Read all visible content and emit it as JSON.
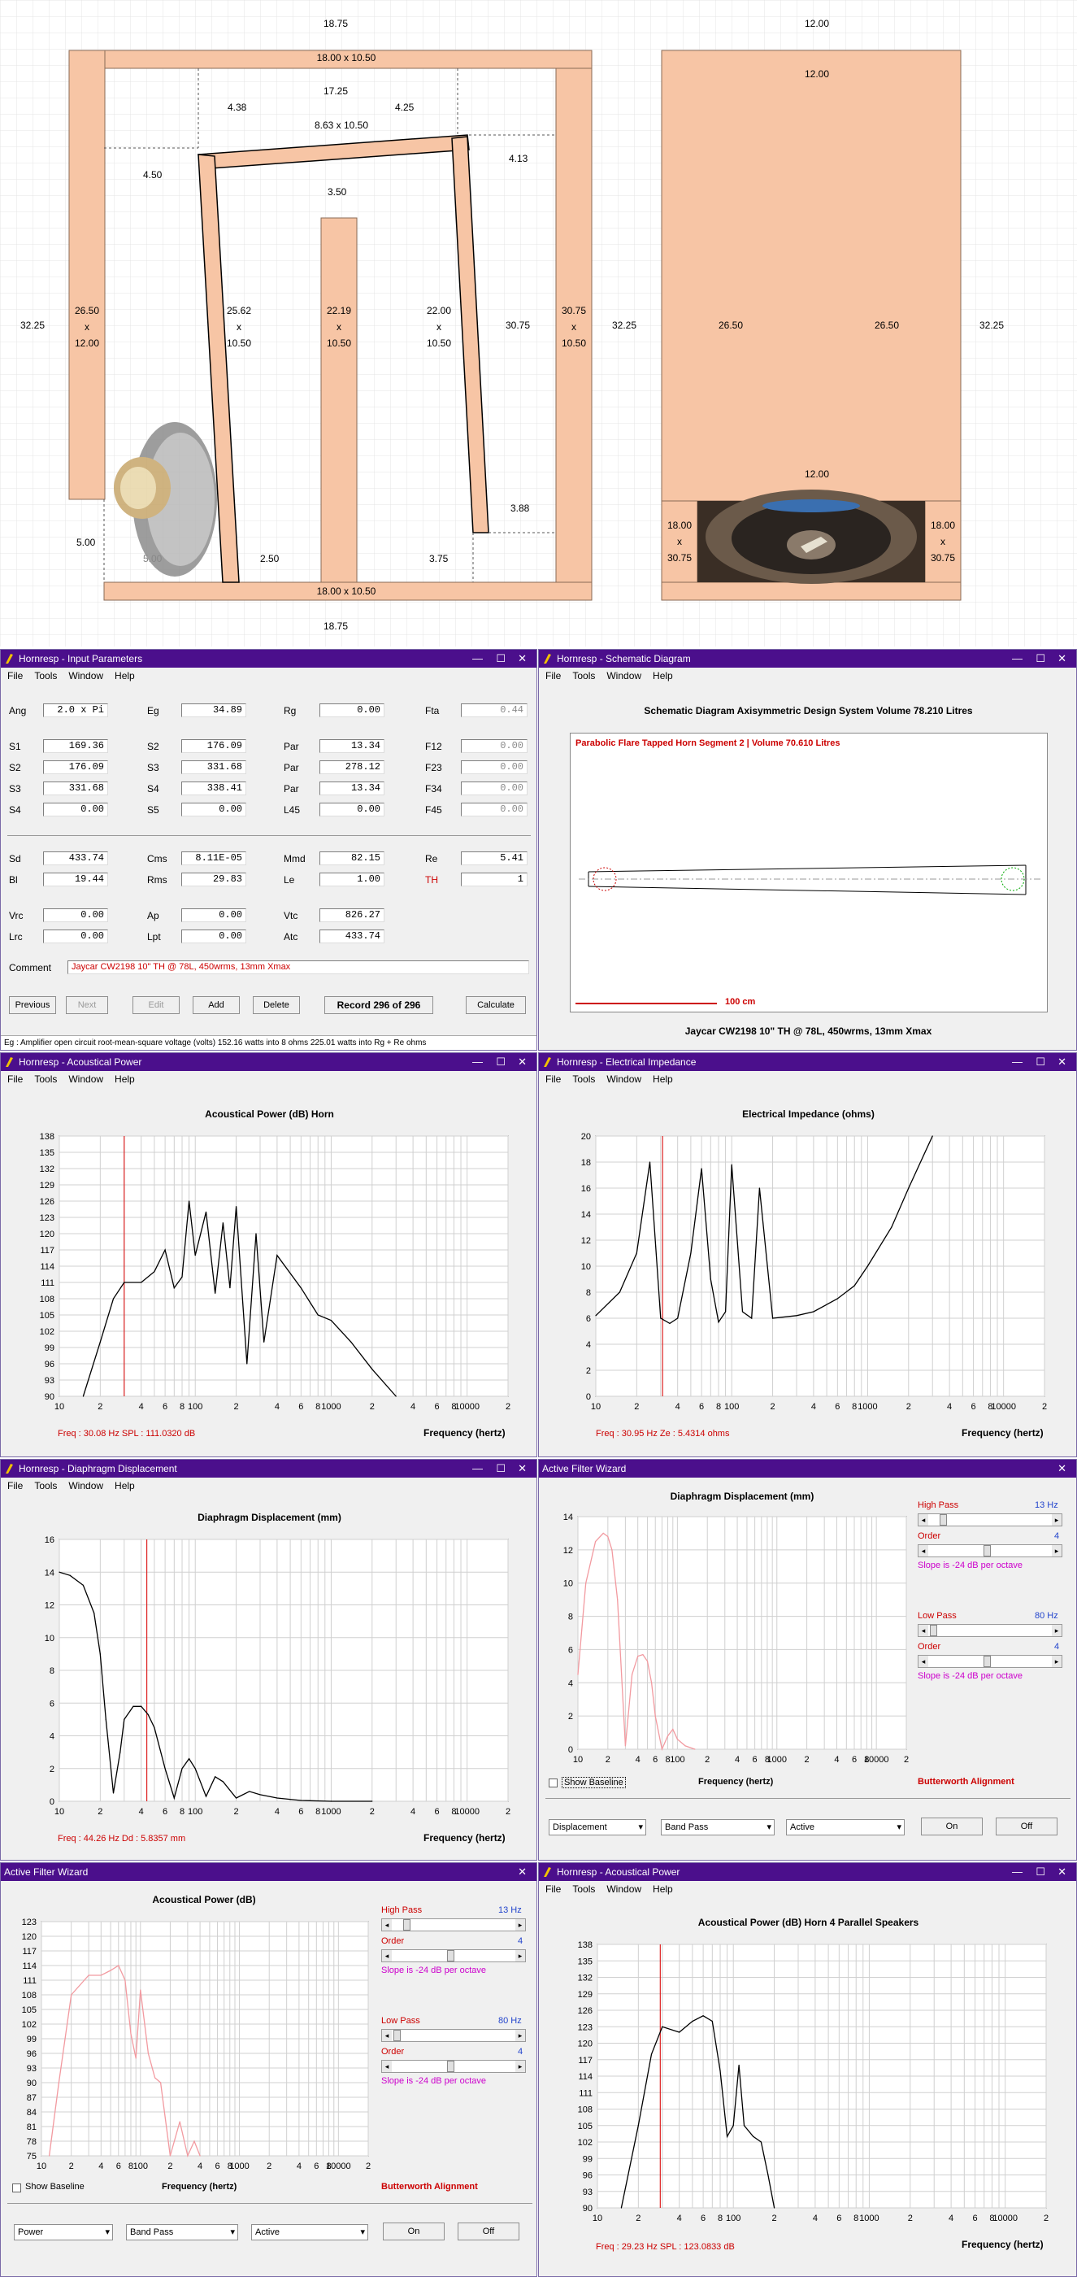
{
  "plan": {
    "side": {
      "top_width": "18.75",
      "bottom_width": "18.75",
      "top_panel": "18.00 x 10.50",
      "bottom_panel": "18.00 x 10.50",
      "upper_inner": "17.25",
      "left_gap": "4.38",
      "right_gap": "4.25",
      "baffle_top": "8.63 x 10.50",
      "left_step": "4.50",
      "right_step": "4.13",
      "center_gap": "3.50",
      "height_left": "32.25",
      "left_panel": [
        "26.50",
        "x",
        "12.00"
      ],
      "slant_left": [
        "25.62",
        "x",
        "10.50"
      ],
      "center_panel": [
        "22.19",
        "x",
        "10.50"
      ],
      "slant_right": [
        "22.00",
        "x",
        "10.50"
      ],
      "right_height": "30.75",
      "right_panel": [
        "30.75",
        "x",
        "10.50"
      ],
      "height_right": "32.25",
      "right_bottom": "3.88",
      "left_bottom": "5.00",
      "driver_gap": "5.00",
      "bottom_gap_left": "2.50",
      "bottom_gap_right": "3.75"
    },
    "front": {
      "top_width": "12.00",
      "inner_top": "12.00",
      "left_depth": "26.50",
      "right_depth": "26.50",
      "height_right": "32.25",
      "mid": "12.00",
      "foot_left": [
        "18.00",
        "x",
        "30.75"
      ],
      "foot_right": [
        "18.00",
        "x",
        "30.75"
      ]
    }
  },
  "input_params": {
    "title": "Hornresp - Input Parameters",
    "menu": [
      "File",
      "Tools",
      "Window",
      "Help"
    ],
    "row1": [
      {
        "l": "Ang",
        "v": "2.0 x Pi"
      },
      {
        "l": "Eg",
        "v": "34.89"
      },
      {
        "l": "Rg",
        "v": "0.00"
      },
      {
        "l": "Fta",
        "v": "0.44"
      }
    ],
    "grid": [
      [
        {
          "l": "S1",
          "v": "169.36"
        },
        {
          "l": "S2",
          "v": "176.09"
        },
        {
          "l": "Par",
          "v": "13.34"
        },
        {
          "l": "F12",
          "v": "0.00"
        }
      ],
      [
        {
          "l": "S2",
          "v": "176.09"
        },
        {
          "l": "S3",
          "v": "331.68"
        },
        {
          "l": "Par",
          "v": "278.12"
        },
        {
          "l": "F23",
          "v": "0.00"
        }
      ],
      [
        {
          "l": "S3",
          "v": "331.68"
        },
        {
          "l": "S4",
          "v": "338.41"
        },
        {
          "l": "Par",
          "v": "13.34"
        },
        {
          "l": "F34",
          "v": "0.00"
        }
      ],
      [
        {
          "l": "S4",
          "v": "0.00"
        },
        {
          "l": "S5",
          "v": "0.00"
        },
        {
          "l": "L45",
          "v": "0.00"
        },
        {
          "l": "F45",
          "v": "0.00"
        }
      ]
    ],
    "driver": [
      [
        {
          "l": "Sd",
          "v": "433.74"
        },
        {
          "l": "Cms",
          "v": "8.11E-05"
        },
        {
          "l": "Mmd",
          "v": "82.15"
        },
        {
          "l": "Re",
          "v": "5.41"
        }
      ],
      [
        {
          "l": "Bl",
          "v": "19.44"
        },
        {
          "l": "Rms",
          "v": "29.83"
        },
        {
          "l": "Le",
          "v": "1.00"
        },
        {
          "l": "TH",
          "v": "1"
        }
      ]
    ],
    "chamber": [
      [
        {
          "l": "Vrc",
          "v": "0.00"
        },
        {
          "l": "Ap",
          "v": "0.00"
        },
        {
          "l": "Vtc",
          "v": "826.27"
        }
      ],
      [
        {
          "l": "Lrc",
          "v": "0.00"
        },
        {
          "l": "Lpt",
          "v": "0.00"
        },
        {
          "l": "Atc",
          "v": "433.74"
        }
      ]
    ],
    "comment_label": "Comment",
    "comment": "Jaycar CW2198 10\" TH @ 78L, 450wrms, 13mm Xmax",
    "buttons": [
      "Previous",
      "Next",
      "Edit",
      "Add",
      "Delete"
    ],
    "record": "Record 296 of 296",
    "calculate": "Calculate",
    "status": "Eg : Amplifier open circuit root-mean-square voltage  (volts)   152.16 watts into 8 ohms    225.01 watts into Rg + Re ohms"
  },
  "schematic": {
    "title": "Hornresp - Schematic Diagram",
    "menu": [
      "File",
      "Tools",
      "Window",
      "Help"
    ],
    "header": "Schematic Diagram   Axisymmetric Design   System Volume 78.210 Litres",
    "segment": "Parabolic Flare Tapped Horn Segment 2 | Volume 70.610 Litres",
    "scale": "100 cm",
    "caption": "Jaycar CW2198 10\" TH @ 78L, 450wrms, 13mm Xmax"
  },
  "acoustic": {
    "title": "Hornresp - Acoustical Power",
    "menu": [
      "File",
      "Tools",
      "Window",
      "Help"
    ],
    "chart_title": "Acoustical Power (dB)   Horn",
    "xlabel": "Frequency (hertz)",
    "status": "Freq : 30.08 Hz     SPL : 111.0320 dB"
  },
  "impedance": {
    "title": "Hornresp - Electrical Impedance",
    "menu": [
      "File",
      "Tools",
      "Window",
      "Help"
    ],
    "chart_title": "Electrical Impedance (ohms)",
    "xlabel": "Frequency (hertz)",
    "status": "Freq : 30.95 Hz     Ze : 5.4314 ohms"
  },
  "displacement": {
    "title": "Hornresp - Diaphragm Displacement",
    "menu": [
      "File",
      "Tools",
      "Window",
      "Help"
    ],
    "chart_title": "Diaphragm Displacement (mm)",
    "xlabel": "Frequency (hertz)",
    "status": "Freq : 44.26 Hz     Dd : 5.8357 mm"
  },
  "filter1": {
    "title": "Active Filter Wizard",
    "chart_title": "Diaphragm Displacement (mm)",
    "xlabel": "Frequency (hertz)",
    "high_pass": "High Pass",
    "hp_val": "13 Hz",
    "order": "Order",
    "order_val": "4",
    "slope": "Slope is -24 dB per octave",
    "low_pass": "Low Pass",
    "lp_val": "80 Hz",
    "show_baseline": "Show Baseline",
    "alignment": "Butterworth Alignment",
    "sel1": "Displacement",
    "sel2": "Band Pass",
    "sel3": "Active",
    "on": "On",
    "off": "Off"
  },
  "filter2": {
    "title": "Active Filter Wizard",
    "chart_title": "Acoustical Power (dB)",
    "xlabel": "Frequency (hertz)",
    "high_pass": "High Pass",
    "hp_val": "13 Hz",
    "order": "Order",
    "order_val": "4",
    "slope": "Slope is -24 dB per octave",
    "low_pass": "Low Pass",
    "lp_val": "80 Hz",
    "show_baseline": "Show Baseline",
    "alignment": "Butterworth Alignment",
    "sel1": "Power",
    "sel2": "Band Pass",
    "sel3": "Active",
    "on": "On",
    "off": "Off"
  },
  "acoustic4": {
    "title": "Hornresp - Acoustical Power",
    "menu": [
      "File",
      "Tools",
      "Window",
      "Help"
    ],
    "chart_title": "Acoustical Power (dB)   Horn   4 Parallel Speakers",
    "xlabel": "Frequency (hertz)",
    "status": "Freq : 29.23 Hz     SPL : 123.0833 dB"
  },
  "chart_data": [
    {
      "id": "acoustic",
      "type": "line",
      "ylim": [
        90,
        138
      ],
      "yticks": [
        "138",
        "135",
        "132",
        "129",
        "126",
        "123",
        "120",
        "117",
        "114",
        "111",
        "108",
        "105",
        "102",
        "99",
        "96",
        "93",
        "90"
      ],
      "xticks": [
        "10",
        "2",
        "4",
        "6",
        "8",
        "100",
        "2",
        "4",
        "6",
        "8",
        "1000",
        "2",
        "4",
        "6",
        "8",
        "10000",
        "2"
      ],
      "xlim": [
        10,
        20000
      ],
      "marker": 30,
      "color": "#000000",
      "x": [
        15,
        20,
        25,
        30,
        40,
        50,
        60,
        70,
        80,
        90,
        100,
        120,
        140,
        160,
        180,
        200,
        240,
        280,
        320,
        400,
        600,
        800,
        1000,
        1400,
        2000,
        3000
      ],
      "y": [
        90,
        100,
        108,
        111,
        111,
        113,
        117,
        110,
        112,
        126,
        116,
        124,
        109,
        122,
        110,
        125,
        96,
        120,
        100,
        116,
        110,
        105,
        104,
        100,
        95,
        90
      ]
    },
    {
      "id": "impedance",
      "type": "line",
      "ylim": [
        0,
        20
      ],
      "yticks": [
        "20",
        "18",
        "16",
        "14",
        "12",
        "10",
        "8",
        "6",
        "4",
        "2",
        "0"
      ],
      "xticks": [
        "10",
        "2",
        "4",
        "6",
        "8",
        "100",
        "2",
        "4",
        "6",
        "8",
        "1000",
        "2",
        "4",
        "6",
        "8",
        "10000",
        "2"
      ],
      "xlim": [
        10,
        20000
      ],
      "marker": 31,
      "color": "#000000",
      "x": [
        10,
        15,
        20,
        25,
        30,
        35,
        40,
        50,
        60,
        70,
        80,
        90,
        100,
        120,
        140,
        160,
        200,
        300,
        400,
        600,
        800,
        1000,
        1500,
        2000,
        3000
      ],
      "y": [
        6.2,
        8,
        11,
        18,
        6,
        5.6,
        6,
        11,
        17.5,
        9,
        5.7,
        6.5,
        17.8,
        6.5,
        6,
        16,
        6,
        6.2,
        6.5,
        7.5,
        8.5,
        10,
        13,
        16,
        20
      ]
    },
    {
      "id": "displacement",
      "type": "line",
      "ylim": [
        0,
        16
      ],
      "yticks": [
        "16",
        "14",
        "12",
        "10",
        "8",
        "6",
        "4",
        "2",
        "0"
      ],
      "xticks": [
        "10",
        "2",
        "4",
        "6",
        "8",
        "100",
        "2",
        "4",
        "6",
        "8",
        "1000",
        "2",
        "4",
        "6",
        "8",
        "10000",
        "2"
      ],
      "xlim": [
        10,
        20000
      ],
      "marker": 44,
      "color": "#000000",
      "x": [
        10,
        12,
        15,
        18,
        20,
        22,
        25,
        28,
        30,
        35,
        40,
        45,
        50,
        60,
        70,
        80,
        90,
        100,
        120,
        140,
        160,
        200,
        250,
        300,
        400,
        600,
        1000,
        2000
      ],
      "y": [
        14,
        13.8,
        13.2,
        11.5,
        9,
        5,
        0.5,
        3,
        5,
        5.8,
        5.8,
        5.3,
        4.5,
        2,
        0.2,
        2,
        2.6,
        2,
        0.3,
        1.5,
        1.2,
        0.2,
        0.6,
        0.4,
        0.2,
        0.05,
        0,
        0
      ]
    },
    {
      "id": "filter1",
      "type": "line",
      "ylim": [
        0,
        14
      ],
      "yticks": [
        "14",
        "12",
        "10",
        "8",
        "6",
        "4",
        "2",
        "0"
      ],
      "xticks": [
        "10",
        "2",
        "4",
        "6",
        "8",
        "100",
        "2",
        "4",
        "6",
        "8",
        "1000",
        "2",
        "4",
        "6",
        "8",
        "10000",
        "2"
      ],
      "xlim": [
        10,
        20000
      ],
      "color": "#f29aa0",
      "x": [
        10,
        12,
        15,
        18,
        20,
        22,
        25,
        30,
        35,
        40,
        45,
        50,
        55,
        60,
        70,
        80,
        90,
        100,
        120,
        150
      ],
      "y": [
        4.5,
        10,
        12.5,
        13,
        12.8,
        12,
        9,
        0.2,
        4.5,
        5.6,
        5.7,
        5.3,
        4,
        2,
        0,
        0.8,
        1.2,
        0.6,
        0.2,
        0
      ]
    },
    {
      "id": "filter2",
      "type": "line",
      "ylim": [
        75,
        123
      ],
      "yticks": [
        "123",
        "120",
        "117",
        "114",
        "111",
        "108",
        "105",
        "102",
        "99",
        "96",
        "93",
        "90",
        "87",
        "84",
        "81",
        "78",
        "75"
      ],
      "xticks": [
        "10",
        "2",
        "4",
        "6",
        "8",
        "100",
        "2",
        "4",
        "6",
        "8",
        "1000",
        "2",
        "4",
        "6",
        "8",
        "10000",
        "2"
      ],
      "xlim": [
        10,
        20000
      ],
      "color": "#f29aa0",
      "x": [
        12,
        15,
        20,
        30,
        40,
        50,
        60,
        70,
        80,
        90,
        100,
        120,
        140,
        160,
        200,
        250,
        300,
        350,
        400
      ],
      "y": [
        75,
        90,
        108,
        112,
        112,
        113,
        114,
        111,
        100,
        95,
        109,
        96,
        91,
        90,
        75,
        82,
        75,
        78,
        75
      ]
    },
    {
      "id": "acoustic4",
      "type": "line",
      "ylim": [
        90,
        138
      ],
      "yticks": [
        "138",
        "135",
        "132",
        "129",
        "126",
        "123",
        "120",
        "117",
        "114",
        "111",
        "108",
        "105",
        "102",
        "99",
        "96",
        "93",
        "90"
      ],
      "xticks": [
        "10",
        "2",
        "4",
        "6",
        "8",
        "100",
        "2",
        "4",
        "6",
        "8",
        "1000",
        "2",
        "4",
        "6",
        "8",
        "10000",
        "2"
      ],
      "xlim": [
        10,
        20000
      ],
      "marker": 29,
      "color": "#000000",
      "x": [
        15,
        20,
        25,
        30,
        40,
        50,
        60,
        70,
        80,
        90,
        100,
        110,
        120,
        140,
        160,
        180,
        200
      ],
      "y": [
        90,
        105,
        118,
        123,
        122,
        124,
        125,
        124,
        115,
        103,
        105,
        116,
        105,
        103,
        102,
        96,
        90
      ]
    }
  ]
}
